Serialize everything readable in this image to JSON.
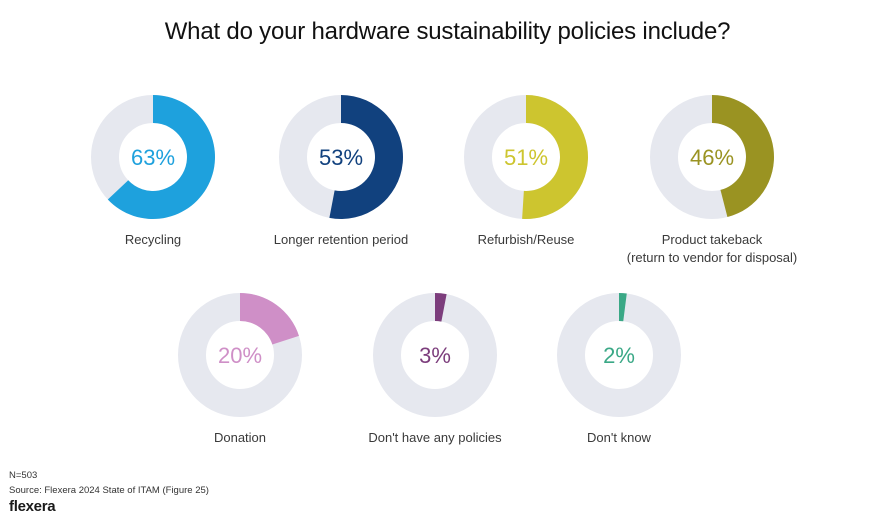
{
  "chart_data": {
    "type": "pie",
    "subtype": "donut-grid",
    "title": "What do your hardware sustainability policies include?",
    "unit": "%",
    "track_color": "#e6e8ef",
    "items": [
      {
        "label": "Recycling",
        "value": 63,
        "value_label": "63%",
        "color": "#1ea1dd"
      },
      {
        "label": "Longer retention period",
        "value": 53,
        "value_label": "53%",
        "color": "#11417e"
      },
      {
        "label": "Refurbish/Reuse",
        "value": 51,
        "value_label": "51%",
        "color": "#cdc52f"
      },
      {
        "label": "Product takeback",
        "label_line2": "(return to vendor for disposal)",
        "value": 46,
        "value_label": "46%",
        "color": "#9a9322"
      },
      {
        "label": "Donation",
        "value": 20,
        "value_label": "20%",
        "color": "#cf8fc7"
      },
      {
        "label": "Don't have any policies",
        "value": 3,
        "value_label": "3%",
        "color": "#7c3d7c"
      },
      {
        "label": "Don't know",
        "value": 2,
        "value_label": "2%",
        "color": "#3aa886"
      }
    ]
  },
  "footer": {
    "sample": "N=503",
    "source": "Source: Flexera 2024 State of ITAM (Figure 25)",
    "brand": "flexera"
  }
}
